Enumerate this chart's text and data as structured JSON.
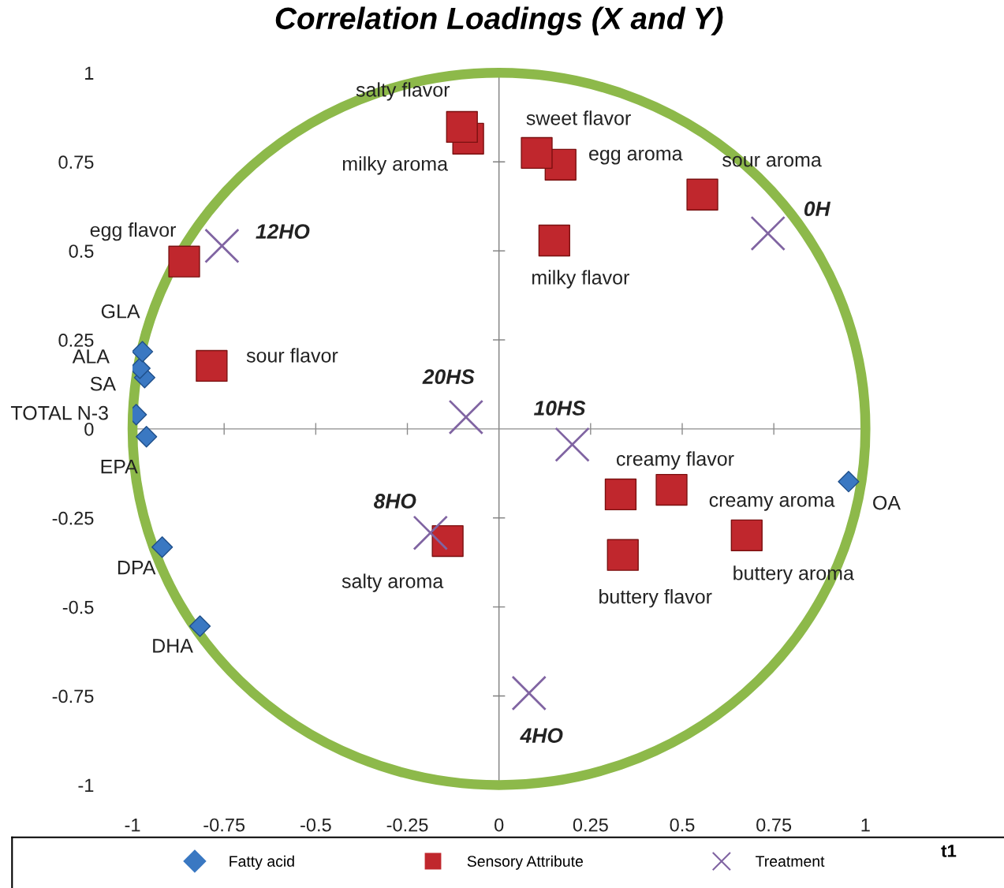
{
  "chart_data": {
    "type": "scatter",
    "title": "Correlation Loadings (X and Y)",
    "xlim": [
      -1,
      1
    ],
    "ylim": [
      -1,
      1
    ],
    "xticks": [
      -1,
      -0.75,
      -0.5,
      -0.25,
      0,
      0.25,
      0.5,
      0.75,
      1
    ],
    "yticks": [
      -1,
      -0.75,
      -0.5,
      -0.25,
      0,
      0.25,
      0.5,
      0.75,
      1
    ],
    "grid": false,
    "legend": "bottom",
    "ref_lines": [
      {
        "axis": "x",
        "value": 0,
        "color": "#7f7f7f"
      },
      {
        "axis": "y",
        "value": 0,
        "color": "#8c8c8c"
      }
    ],
    "series": [
      {
        "name": "Fatty acid",
        "color": "#3a78c2",
        "marker": "diamond",
        "x": [
          -0.973,
          -0.98,
          -0.967,
          -0.99,
          -0.962,
          -0.919,
          -0.816,
          0.954
        ],
        "values": [
          0.217,
          0.17,
          0.144,
          0.04,
          -0.022,
          -0.332,
          -0.554,
          -0.148
        ]
      },
      {
        "name": "Sensory Attribute",
        "color": "#c0272d",
        "marker": "square",
        "x": [
          -0.101,
          -0.084,
          0.103,
          0.168,
          0.555,
          0.151,
          -0.859,
          -0.784,
          0.332,
          0.471,
          0.676,
          0.338,
          -0.14
        ],
        "values": [
          0.848,
          0.815,
          0.775,
          0.742,
          0.658,
          0.529,
          0.47,
          0.177,
          -0.184,
          -0.171,
          -0.299,
          -0.354,
          -0.315
        ]
      },
      {
        "name": "Treatment",
        "color": "#8064a2",
        "marker": "cross",
        "x": [
          -0.756,
          0.734,
          -0.09,
          0.2,
          -0.187,
          0.082
        ],
        "values": [
          0.514,
          0.549,
          0.033,
          -0.044,
          -0.292,
          -0.742
        ]
      }
    ],
    "annotations": [
      {
        "text": "GLA",
        "x": -0.973,
        "y": 0.217
      },
      {
        "text": "ALA",
        "x": -0.98,
        "y": 0.17
      },
      {
        "text": "SA",
        "x": -0.967,
        "y": 0.144
      },
      {
        "text": "TOTAL N-3",
        "x": -0.99,
        "y": 0.04
      },
      {
        "text": "EPA",
        "x": -0.962,
        "y": -0.022
      },
      {
        "text": "DPA",
        "x": -0.919,
        "y": -0.332
      },
      {
        "text": "DHA",
        "x": -0.816,
        "y": -0.554
      },
      {
        "text": "OA",
        "x": 0.954,
        "y": -0.148
      },
      {
        "text": "salty flavor",
        "x": -0.101,
        "y": 0.848
      },
      {
        "text": "milky aroma",
        "x": -0.084,
        "y": 0.815
      },
      {
        "text": "sweet flavor",
        "x": 0.103,
        "y": 0.775
      },
      {
        "text": "egg aroma",
        "x": 0.168,
        "y": 0.742
      },
      {
        "text": "sour aroma",
        "x": 0.555,
        "y": 0.658
      },
      {
        "text": "milky flavor",
        "x": 0.151,
        "y": 0.529
      },
      {
        "text": "egg flavor",
        "x": -0.859,
        "y": 0.47
      },
      {
        "text": "sour flavor",
        "x": -0.784,
        "y": 0.177
      },
      {
        "text": "creamy flavor",
        "x": 0.332,
        "y": -0.184
      },
      {
        "text": "creamy aroma",
        "x": 0.471,
        "y": -0.171
      },
      {
        "text": "buttery aroma",
        "x": 0.676,
        "y": -0.299
      },
      {
        "text": "buttery flavor",
        "x": 0.338,
        "y": -0.354
      },
      {
        "text": "salty aroma",
        "x": -0.14,
        "y": -0.315
      },
      {
        "text": "12HO",
        "x": -0.756,
        "y": 0.514
      },
      {
        "text": "0H",
        "x": 0.734,
        "y": 0.549
      },
      {
        "text": "20HS",
        "x": -0.09,
        "y": 0.033
      },
      {
        "text": "10HS",
        "x": 0.2,
        "y": -0.044
      },
      {
        "text": "8HO",
        "x": -0.187,
        "y": -0.292
      },
      {
        "text": "4HO",
        "x": 0.082,
        "y": -0.742
      },
      "t1"
    ]
  }
}
